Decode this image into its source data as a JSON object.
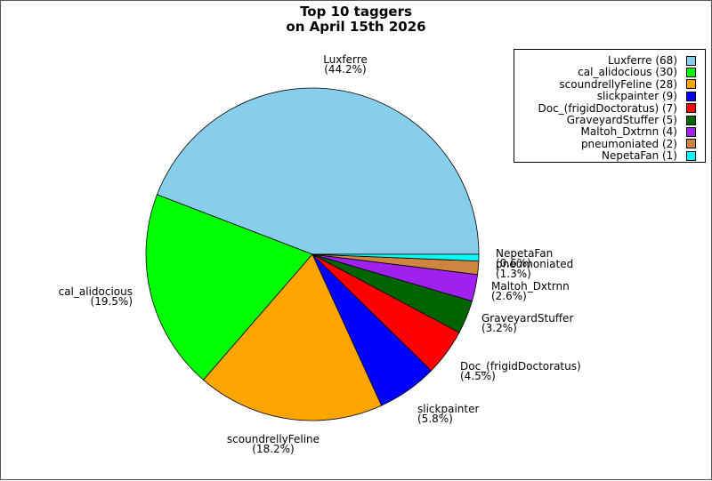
{
  "chart_data": {
    "type": "pie",
    "title_lines": [
      "Top 10 taggers",
      "on April 15th 2026"
    ],
    "slices": [
      {
        "label": "Luxferre",
        "value": 68,
        "percent": "(44.2%)",
        "legend": "Luxferre (68)",
        "color": "#87ceeb"
      },
      {
        "label": "cal_alidocious",
        "value": 30,
        "percent": "(19.5%)",
        "legend": "cal_alidocious (30)",
        "color": "#00ff00"
      },
      {
        "label": "scoundrellyFeline",
        "value": 28,
        "percent": "(18.2%)",
        "legend": "scoundrellyFeline (28)",
        "color": "#ffa500"
      },
      {
        "label": "slickpainter",
        "value": 9,
        "percent": "(5.8%)",
        "legend": "slickpainter (9)",
        "color": "#0000ff"
      },
      {
        "label": "Doc_(frigidDoctoratus)",
        "value": 7,
        "percent": "(4.5%)",
        "legend": "Doc_(frigidDoctoratus) (7)",
        "color": "#ff0000"
      },
      {
        "label": "GraveyardStuffer",
        "value": 5,
        "percent": "(3.2%)",
        "legend": "GraveyardStuffer (5)",
        "color": "#006400"
      },
      {
        "label": "Maltoh_Dxtrnn",
        "value": 4,
        "percent": "(2.6%)",
        "legend": "Maltoh_Dxtrnn (4)",
        "color": "#a020f0"
      },
      {
        "label": "pneumoniated",
        "value": 2,
        "percent": "(1.3%)",
        "legend": "pneumoniated (2)",
        "color": "#cd853f"
      },
      {
        "label": "NepetaFan",
        "value": 1,
        "percent": "(0.6%)",
        "legend": "NepetaFan (1)",
        "color": "#00ffff"
      }
    ],
    "legend_position": "top-right"
  }
}
